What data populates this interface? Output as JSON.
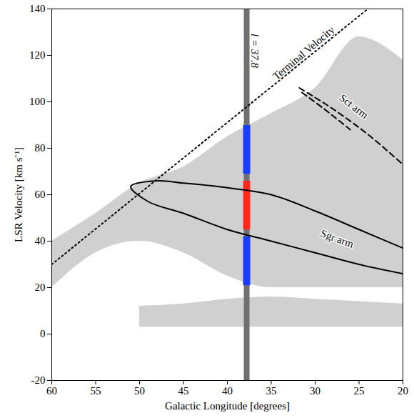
{
  "chart_data": {
    "type": "line",
    "x_label": "Galactic Longitude [degrees]",
    "y_label": "LSR Velocity [km s⁻¹]",
    "xlim": [
      60,
      20
    ],
    "ylim": [
      -20,
      140
    ],
    "xticks": [
      60,
      55,
      50,
      45,
      40,
      35,
      30,
      25,
      20
    ],
    "yticks": [
      -20,
      0,
      20,
      40,
      60,
      80,
      100,
      120,
      140
    ],
    "grid": false,
    "regions": [
      {
        "color": "#c4c4c4",
        "x": [
          60,
          55,
          50,
          45,
          40,
          35,
          30,
          25,
          20
        ],
        "low": [
          20,
          35,
          40,
          35,
          25,
          20,
          20,
          20,
          20
        ],
        "high": [
          40,
          52,
          65,
          72,
          85,
          95,
          106,
          128,
          118
        ]
      },
      {
        "color": "#c4c4c4",
        "x": [
          50,
          45,
          40,
          35,
          30,
          25,
          20
        ],
        "low": [
          3,
          3,
          3,
          3,
          3,
          3,
          3
        ],
        "high": [
          12,
          13,
          15,
          16,
          15,
          14,
          13
        ]
      }
    ],
    "series": [
      {
        "type": "rule",
        "color": "#707070",
        "line_style": "solid",
        "x": [
          37.8,
          37.8
        ],
        "values": [
          -20,
          140
        ]
      },
      {
        "type": "segment",
        "color": "#1a3cff",
        "line_style": "solid",
        "x": [
          37.8,
          37.8
        ],
        "values": [
          69,
          90
        ]
      },
      {
        "type": "segment",
        "color": "#ff2a1a",
        "line_style": "solid",
        "x": [
          37.8,
          37.8
        ],
        "values": [
          45,
          66
        ]
      },
      {
        "type": "segment",
        "color": "#1a3cff",
        "line_style": "solid",
        "x": [
          37.8,
          37.8
        ],
        "values": [
          21,
          42
        ]
      },
      {
        "type": "line",
        "color": "#000000",
        "line_style": "dotted",
        "x": [
          60,
          24
        ],
        "values": [
          30,
          140
        ]
      },
      {
        "type": "line",
        "color": "#000000",
        "line_style": "dashed",
        "x": [
          31.8,
          28,
          24,
          20
        ],
        "values": [
          106,
          97,
          86,
          73
        ]
      },
      {
        "type": "line",
        "color": "#000000",
        "line_style": "dashed",
        "x": [
          31.5,
          29,
          26
        ],
        "values": [
          104,
          97,
          88
        ]
      },
      {
        "type": "line",
        "color": "#000000",
        "line_style": "solid",
        "x": [
          20,
          25,
          30,
          35,
          40,
          45,
          48,
          51,
          49,
          45,
          40,
          35,
          30,
          25,
          20
        ],
        "values": [
          37,
          45,
          53,
          60,
          63,
          65,
          66,
          63.5,
          57,
          52,
          45,
          40,
          35,
          30,
          26
        ]
      }
    ],
    "annotations": [
      {
        "text": "Terminal Velocity",
        "x": 31.3,
        "y": 121
      },
      {
        "text": "Sct arm",
        "x": 25.6,
        "y": 98
      },
      {
        "text": "Sgr arm",
        "x": 27.5,
        "y": 41
      },
      {
        "text": "l = 37.8",
        "x": 36.9,
        "y": 122
      }
    ]
  }
}
